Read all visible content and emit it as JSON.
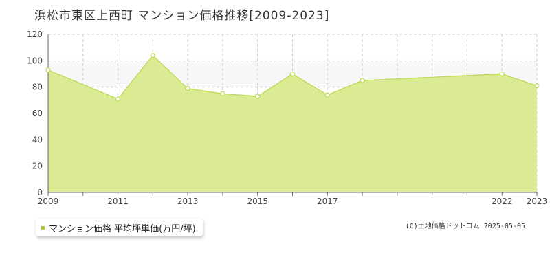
{
  "header": {
    "title": "浜松市東区上西町 マンション価格推移[2009-2023]"
  },
  "legend": {
    "label": "マンション価格 平均坪単価(万円/坪)"
  },
  "footer": {
    "credit": "(C)土地価格ドットコム 2025-05-05"
  },
  "colors": {
    "fill": "#dbeb94",
    "line": "#b8d94a",
    "band": "#f7f7f9",
    "grid": "#cccccc",
    "marker": "#a7cc2e"
  },
  "chart_data": {
    "type": "area",
    "title": "浜松市東区上西町 マンション価格推移[2009-2023]",
    "xlabel": "",
    "ylabel": "",
    "xlim": [
      2009,
      2023
    ],
    "ylim": [
      0,
      120
    ],
    "yticks": [
      0,
      20,
      40,
      60,
      80,
      100,
      120
    ],
    "xtick_labels": [
      "2009",
      "2011",
      "2013",
      "2015",
      "2017",
      "2022",
      "2023"
    ],
    "grid": true,
    "legend_position": "bottom-left",
    "series": [
      {
        "name": "マンション価格 平均坪単価(万円/坪)",
        "x": [
          2009,
          2011,
          2012,
          2013,
          2014,
          2015,
          2016,
          2017,
          2018,
          2022,
          2023
        ],
        "y": [
          93,
          71,
          104,
          79,
          75,
          73,
          90,
          74,
          85,
          90,
          81
        ]
      }
    ]
  }
}
